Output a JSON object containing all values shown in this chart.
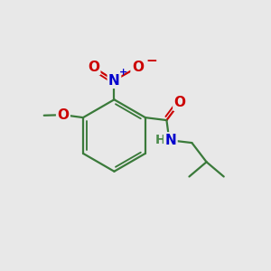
{
  "background_color": "#e8e8e8",
  "bond_color": "#3a7a3a",
  "atom_colors": {
    "O": "#cc0000",
    "N": "#0000cc",
    "H": "#4a8a4a"
  },
  "figsize": [
    3.0,
    3.0
  ],
  "dpi": 100
}
